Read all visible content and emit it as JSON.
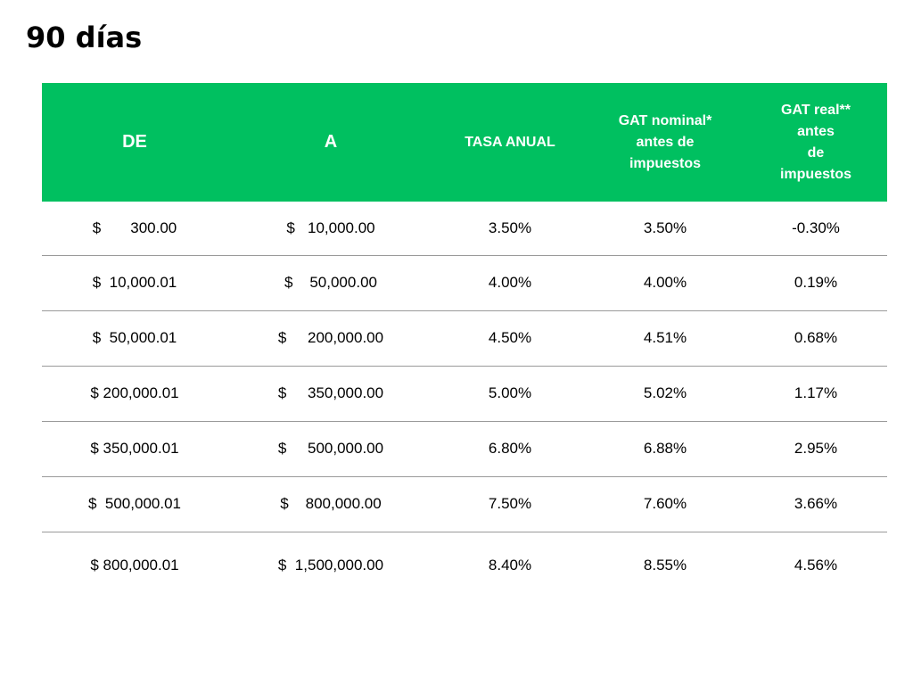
{
  "title": "90 días",
  "table": {
    "headers": {
      "de": "DE",
      "a": "A",
      "tasa": "TASA ANUAL",
      "gat_nominal": "GAT nominal*\nantes de\nimpuestos",
      "gat_real": "GAT real**\nantes\nde\nimpuestos"
    },
    "rows": [
      {
        "de": "$       300.00",
        "a": "$   10,000.00",
        "tasa": "3.50%",
        "gat_nominal": "3.50%",
        "gat_real": "-0.30%"
      },
      {
        "de": "$  10,000.01",
        "a": "$    50,000.00",
        "tasa": "4.00%",
        "gat_nominal": "4.00%",
        "gat_real": "0.19%"
      },
      {
        "de": "$  50,000.01",
        "a": "$     200,000.00",
        "tasa": "4.50%",
        "gat_nominal": "4.51%",
        "gat_real": "0.68%"
      },
      {
        "de": "$ 200,000.01",
        "a": "$     350,000.00",
        "tasa": "5.00%",
        "gat_nominal": "5.02%",
        "gat_real": "1.17%"
      },
      {
        "de": "$ 350,000.01",
        "a": "$     500,000.00",
        "tasa": "6.80%",
        "gat_nominal": "6.88%",
        "gat_real": "2.95%"
      },
      {
        "de": "$  500,000.01",
        "a": "$    800,000.00",
        "tasa": "7.50%",
        "gat_nominal": "7.60%",
        "gat_real": "3.66%"
      },
      {
        "de": "$ 800,000.01",
        "a": "$  1,500,000.00",
        "tasa": "8.40%",
        "gat_nominal": "8.55%",
        "gat_real": "4.56%"
      }
    ]
  },
  "colors": {
    "header_background": "#00c060",
    "header_text": "#ffffff",
    "row_divider": "#9a9a9a"
  }
}
